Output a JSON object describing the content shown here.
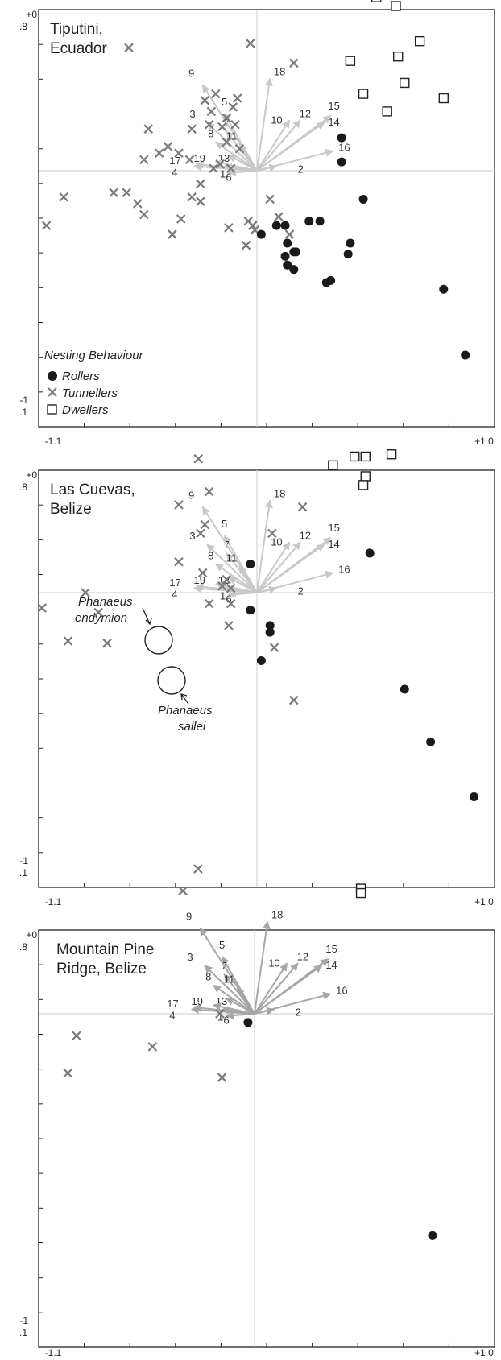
{
  "colors": {
    "frame": "#222222",
    "crosshair": "#d4d4d4",
    "arrow_light": "#c8c8c8",
    "arrow_dark": "#a6a6a6",
    "label": "#333333",
    "roller": "#1a1a1a",
    "tunneller": "#7a7a7a",
    "dweller": "#222222"
  },
  "axis_ticks": {
    "y_top": [
      "+0",
      ".8"
    ],
    "y_bottom": [
      "-1",
      ".1"
    ],
    "x_left": "-1.1",
    "x_right": "+1.0"
  },
  "legend": {
    "title": "Nesting Behaviour",
    "items": [
      "Rollers",
      "Tunnellers",
      "Dwellers"
    ]
  },
  "annotations": {
    "endymion": [
      "Phanaeus",
      "endymion"
    ],
    "sallei": [
      "Phanaeus",
      "sallei"
    ]
  },
  "chart_data": [
    {
      "type": "scatter",
      "title": [
        "Tiputini,",
        "Ecuador"
      ],
      "xlim": [
        -1.1,
        1.0
      ],
      "ylim": [
        -1.1,
        0.8
      ],
      "vectors": [
        {
          "id": "1",
          "x": -0.15,
          "y": 0.02,
          "shade": "light"
        },
        {
          "id": "2",
          "x": 0.09,
          "y": 0.02,
          "shade": "light"
        },
        {
          "id": "3",
          "x": -0.23,
          "y": 0.22,
          "shade": "light"
        },
        {
          "id": "4",
          "x": -0.29,
          "y": 0.02,
          "shade": "light"
        },
        {
          "id": "5",
          "x": -0.15,
          "y": 0.26,
          "shade": "light"
        },
        {
          "id": "6",
          "x": -0.13,
          "y": -0.01,
          "shade": "light"
        },
        {
          "id": "7",
          "x": -0.14,
          "y": 0.18,
          "shade": "light"
        },
        {
          "id": "8",
          "x": -0.19,
          "y": 0.13,
          "shade": "light"
        },
        {
          "id": "9",
          "x": -0.25,
          "y": 0.39,
          "shade": "light"
        },
        {
          "id": "10",
          "x": 0.15,
          "y": 0.23,
          "shade": "light"
        },
        {
          "id": "11",
          "x": -0.08,
          "y": 0.12,
          "shade": "light"
        },
        {
          "id": "12",
          "x": 0.2,
          "y": 0.23,
          "shade": "light"
        },
        {
          "id": "13",
          "x": -0.13,
          "y": 0.07,
          "shade": "light"
        },
        {
          "id": "14",
          "x": 0.31,
          "y": 0.22,
          "shade": "light"
        },
        {
          "id": "15",
          "x": 0.34,
          "y": 0.25,
          "shade": "light"
        },
        {
          "id": "16",
          "x": 0.35,
          "y": 0.09,
          "shade": "light"
        },
        {
          "id": "17",
          "x": -0.28,
          "y": 0.03,
          "shade": "light"
        },
        {
          "id": "18",
          "x": 0.06,
          "y": 0.42,
          "shade": "light"
        },
        {
          "id": "19",
          "x": -0.19,
          "y": 0.04,
          "shade": "light"
        }
      ],
      "rollers": [
        [
          0.39,
          0.15
        ],
        [
          0.39,
          0.04
        ],
        [
          0.49,
          -0.13
        ],
        [
          0.02,
          -0.29
        ],
        [
          0.09,
          -0.25
        ],
        [
          0.13,
          -0.25
        ],
        [
          0.24,
          -0.23
        ],
        [
          0.29,
          -0.23
        ],
        [
          0.14,
          -0.33
        ],
        [
          0.14,
          -0.43
        ],
        [
          0.13,
          -0.39
        ],
        [
          0.17,
          -0.37
        ],
        [
          0.18,
          -0.37
        ],
        [
          0.17,
          -0.45
        ],
        [
          0.34,
          -0.5
        ],
        [
          0.32,
          -0.51
        ],
        [
          0.43,
          -0.33
        ],
        [
          0.42,
          -0.38
        ],
        [
          0.86,
          -0.54
        ],
        [
          0.96,
          -0.84
        ]
      ],
      "tunnellers": [
        [
          -0.59,
          0.56
        ],
        [
          -0.03,
          0.58
        ],
        [
          0.17,
          0.49
        ],
        [
          -0.5,
          0.19
        ],
        [
          -0.45,
          0.08
        ],
        [
          -0.41,
          0.11
        ],
        [
          -0.52,
          0.05
        ],
        [
          -0.31,
          0.05
        ],
        [
          -0.36,
          0.08
        ],
        [
          -0.12,
          0.01
        ],
        [
          -0.17,
          0.03
        ],
        [
          -0.14,
          0.13
        ],
        [
          -0.22,
          0.21
        ],
        [
          -0.3,
          0.19
        ],
        [
          -0.24,
          0.32
        ],
        [
          -0.19,
          0.35
        ],
        [
          -0.09,
          0.33
        ],
        [
          -0.11,
          0.29
        ],
        [
          -0.16,
          0.2
        ],
        [
          -0.21,
          0.27
        ],
        [
          -0.14,
          0.24
        ],
        [
          -0.1,
          0.21
        ],
        [
          -0.08,
          0.1
        ],
        [
          -0.2,
          0.01
        ],
        [
          -0.26,
          -0.14
        ],
        [
          -0.3,
          -0.12
        ],
        [
          -0.35,
          -0.22
        ],
        [
          -0.39,
          -0.29
        ],
        [
          -0.52,
          -0.2
        ],
        [
          -0.6,
          -0.1
        ],
        [
          -0.55,
          -0.15
        ],
        [
          -0.66,
          -0.1
        ],
        [
          -0.89,
          -0.12
        ],
        [
          -0.97,
          -0.25
        ],
        [
          -0.13,
          -0.26
        ],
        [
          -0.02,
          -0.25
        ],
        [
          -0.01,
          -0.27
        ],
        [
          -0.05,
          -0.34
        ],
        [
          0.06,
          -0.13
        ],
        [
          -0.26,
          -0.06
        ],
        [
          -0.04,
          -0.23
        ],
        [
          0.1,
          -0.21
        ],
        [
          0.15,
          -0.29
        ]
      ],
      "dwellers": [
        [
          0.55,
          0.79
        ],
        [
          0.64,
          0.75
        ],
        [
          0.75,
          0.59
        ],
        [
          0.65,
          0.52
        ],
        [
          0.43,
          0.5
        ],
        [
          0.49,
          0.35
        ],
        [
          0.68,
          0.4
        ],
        [
          0.86,
          0.33
        ],
        [
          0.6,
          0.27
        ]
      ]
    },
    {
      "type": "scatter",
      "title": [
        "Las Cuevas,",
        "Belize"
      ],
      "xlim": [
        -1.1,
        1.0
      ],
      "ylim": [
        -1.1,
        0.8
      ],
      "vectors": [
        {
          "id": "1",
          "x": -0.15,
          "y": 0.02,
          "shade": "light"
        },
        {
          "id": "2",
          "x": 0.09,
          "y": 0.02,
          "shade": "light"
        },
        {
          "id": "3",
          "x": -0.23,
          "y": 0.22,
          "shade": "light"
        },
        {
          "id": "4",
          "x": -0.29,
          "y": 0.02,
          "shade": "light"
        },
        {
          "id": "5",
          "x": -0.15,
          "y": 0.26,
          "shade": "light"
        },
        {
          "id": "6",
          "x": -0.13,
          "y": -0.01,
          "shade": "light"
        },
        {
          "id": "7",
          "x": -0.14,
          "y": 0.18,
          "shade": "light"
        },
        {
          "id": "8",
          "x": -0.19,
          "y": 0.13,
          "shade": "light"
        },
        {
          "id": "9",
          "x": -0.25,
          "y": 0.39,
          "shade": "light"
        },
        {
          "id": "10",
          "x": 0.15,
          "y": 0.23,
          "shade": "light"
        },
        {
          "id": "11",
          "x": -0.08,
          "y": 0.12,
          "shade": "light"
        },
        {
          "id": "12",
          "x": 0.2,
          "y": 0.23,
          "shade": "light"
        },
        {
          "id": "13",
          "x": -0.13,
          "y": 0.07,
          "shade": "light"
        },
        {
          "id": "14",
          "x": 0.31,
          "y": 0.22,
          "shade": "light"
        },
        {
          "id": "15",
          "x": 0.34,
          "y": 0.25,
          "shade": "light"
        },
        {
          "id": "16",
          "x": 0.35,
          "y": 0.09,
          "shade": "light"
        },
        {
          "id": "17",
          "x": -0.28,
          "y": 0.03,
          "shade": "light"
        },
        {
          "id": "18",
          "x": 0.06,
          "y": 0.42,
          "shade": "light"
        },
        {
          "id": "19",
          "x": -0.19,
          "y": 0.04,
          "shade": "light"
        }
      ],
      "rollers": [
        [
          -0.03,
          0.13
        ],
        [
          0.52,
          0.18
        ],
        [
          -0.03,
          -0.08
        ],
        [
          0.06,
          -0.15
        ],
        [
          0.06,
          -0.18
        ],
        [
          0.02,
          -0.31
        ],
        [
          0.68,
          -0.44
        ],
        [
          0.8,
          -0.68
        ],
        [
          1.0,
          -0.93
        ]
      ],
      "tunnellers": [
        [
          -0.27,
          0.61
        ],
        [
          -0.22,
          0.46
        ],
        [
          -0.36,
          0.4
        ],
        [
          -0.24,
          0.31
        ],
        [
          -0.26,
          0.27
        ],
        [
          0.21,
          0.39
        ],
        [
          0.07,
          0.27
        ],
        [
          -0.36,
          0.14
        ],
        [
          -0.25,
          0.09
        ],
        [
          -0.14,
          0.06
        ],
        [
          -0.16,
          0.03
        ],
        [
          -0.12,
          0.02
        ],
        [
          -0.22,
          -0.05
        ],
        [
          -0.12,
          -0.05
        ],
        [
          -0.79,
          0.0
        ],
        [
          -0.73,
          -0.09
        ],
        [
          -0.69,
          -0.23
        ],
        [
          -0.87,
          -0.22
        ],
        [
          -0.99,
          -0.07
        ],
        [
          -0.13,
          -0.15
        ],
        [
          0.08,
          -0.25
        ],
        [
          0.17,
          -0.49
        ]
      ],
      "dwellers": [
        [
          0.35,
          0.58
        ],
        [
          0.45,
          0.62
        ],
        [
          0.5,
          0.62
        ],
        [
          0.5,
          0.53
        ],
        [
          0.49,
          0.49
        ],
        [
          0.62,
          0.63
        ]
      ]
    },
    {
      "type": "scatter",
      "title": [
        "Mountain Pine",
        "Ridge, Belize"
      ],
      "xlim": [
        -1.1,
        1.0
      ],
      "ylim": [
        -1.1,
        0.8
      ],
      "vectors": [
        {
          "id": "1",
          "x": -0.15,
          "y": 0.02,
          "shade": "dark"
        },
        {
          "id": "2",
          "x": 0.09,
          "y": 0.02,
          "shade": "dark"
        },
        {
          "id": "3",
          "x": -0.23,
          "y": 0.22,
          "shade": "dark"
        },
        {
          "id": "4",
          "x": -0.29,
          "y": 0.02,
          "shade": "dark"
        },
        {
          "id": "5",
          "x": -0.15,
          "y": 0.26,
          "shade": "dark"
        },
        {
          "id": "6",
          "x": -0.13,
          "y": -0.01,
          "shade": "dark"
        },
        {
          "id": "7",
          "x": -0.14,
          "y": 0.18,
          "shade": "dark"
        },
        {
          "id": "8",
          "x": -0.19,
          "y": 0.13,
          "shade": "dark"
        },
        {
          "id": "9",
          "x": -0.25,
          "y": 0.39,
          "shade": "dark"
        },
        {
          "id": "10",
          "x": 0.15,
          "y": 0.23,
          "shade": "dark"
        },
        {
          "id": "11",
          "x": -0.08,
          "y": 0.12,
          "shade": "dark"
        },
        {
          "id": "12",
          "x": 0.2,
          "y": 0.23,
          "shade": "dark"
        },
        {
          "id": "13",
          "x": -0.13,
          "y": 0.07,
          "shade": "dark"
        },
        {
          "id": "14",
          "x": 0.31,
          "y": 0.22,
          "shade": "dark"
        },
        {
          "id": "15",
          "x": 0.34,
          "y": 0.25,
          "shade": "dark"
        },
        {
          "id": "16",
          "x": 0.35,
          "y": 0.09,
          "shade": "dark"
        },
        {
          "id": "17",
          "x": -0.28,
          "y": 0.03,
          "shade": "dark"
        },
        {
          "id": "18",
          "x": 0.06,
          "y": 0.42,
          "shade": "dark"
        },
        {
          "id": "19",
          "x": -0.19,
          "y": 0.04,
          "shade": "dark"
        }
      ],
      "rollers": [
        [
          -0.03,
          -0.04
        ],
        [
          0.82,
          -1.01
        ]
      ],
      "tunnellers": [
        [
          -0.26,
          0.66
        ],
        [
          -0.33,
          0.56
        ],
        [
          -0.16,
          0.0
        ],
        [
          -0.82,
          -0.1
        ],
        [
          -0.47,
          -0.15
        ],
        [
          -0.86,
          -0.27
        ],
        [
          -0.15,
          -0.29
        ]
      ],
      "dwellers": [
        [
          0.49,
          0.57
        ],
        [
          0.49,
          0.55
        ]
      ]
    }
  ]
}
